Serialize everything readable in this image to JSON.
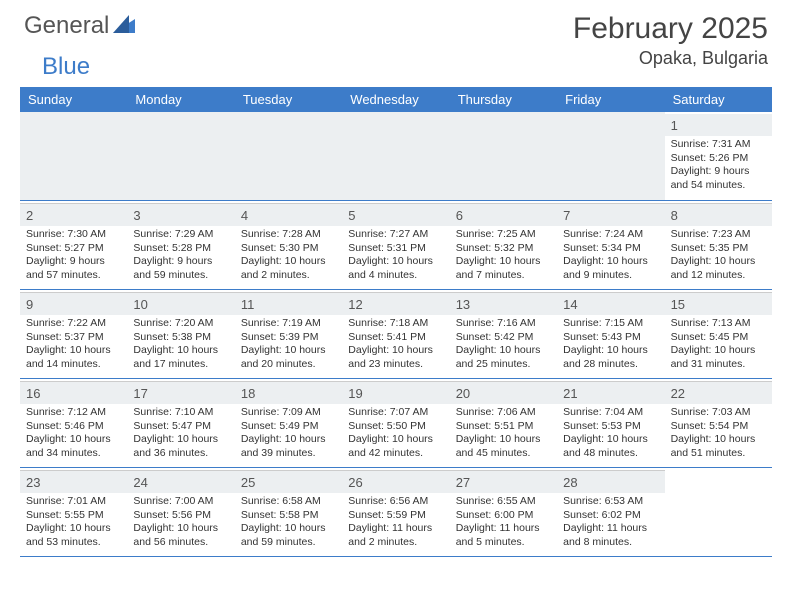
{
  "logo": {
    "word1": "General",
    "word2": "Blue"
  },
  "title": {
    "month": "February 2025",
    "location": "Opaka, Bulgaria"
  },
  "colors": {
    "header_bg": "#3d7cc9",
    "header_fg": "#ffffff",
    "text": "#333333",
    "title_fg": "#444444",
    "daynum_bg": "#eceff1",
    "border": "#3d7cc9"
  },
  "day_names": [
    "Sunday",
    "Monday",
    "Tuesday",
    "Wednesday",
    "Thursday",
    "Friday",
    "Saturday"
  ],
  "weeks": [
    [
      {
        "n": "",
        "sr": "",
        "ss": "",
        "dl": ""
      },
      {
        "n": "",
        "sr": "",
        "ss": "",
        "dl": ""
      },
      {
        "n": "",
        "sr": "",
        "ss": "",
        "dl": ""
      },
      {
        "n": "",
        "sr": "",
        "ss": "",
        "dl": ""
      },
      {
        "n": "",
        "sr": "",
        "ss": "",
        "dl": ""
      },
      {
        "n": "",
        "sr": "",
        "ss": "",
        "dl": ""
      },
      {
        "n": "1",
        "sr": "Sunrise: 7:31 AM",
        "ss": "Sunset: 5:26 PM",
        "dl": "Daylight: 9 hours and 54 minutes."
      }
    ],
    [
      {
        "n": "2",
        "sr": "Sunrise: 7:30 AM",
        "ss": "Sunset: 5:27 PM",
        "dl": "Daylight: 9 hours and 57 minutes."
      },
      {
        "n": "3",
        "sr": "Sunrise: 7:29 AM",
        "ss": "Sunset: 5:28 PM",
        "dl": "Daylight: 9 hours and 59 minutes."
      },
      {
        "n": "4",
        "sr": "Sunrise: 7:28 AM",
        "ss": "Sunset: 5:30 PM",
        "dl": "Daylight: 10 hours and 2 minutes."
      },
      {
        "n": "5",
        "sr": "Sunrise: 7:27 AM",
        "ss": "Sunset: 5:31 PM",
        "dl": "Daylight: 10 hours and 4 minutes."
      },
      {
        "n": "6",
        "sr": "Sunrise: 7:25 AM",
        "ss": "Sunset: 5:32 PM",
        "dl": "Daylight: 10 hours and 7 minutes."
      },
      {
        "n": "7",
        "sr": "Sunrise: 7:24 AM",
        "ss": "Sunset: 5:34 PM",
        "dl": "Daylight: 10 hours and 9 minutes."
      },
      {
        "n": "8",
        "sr": "Sunrise: 7:23 AM",
        "ss": "Sunset: 5:35 PM",
        "dl": "Daylight: 10 hours and 12 minutes."
      }
    ],
    [
      {
        "n": "9",
        "sr": "Sunrise: 7:22 AM",
        "ss": "Sunset: 5:37 PM",
        "dl": "Daylight: 10 hours and 14 minutes."
      },
      {
        "n": "10",
        "sr": "Sunrise: 7:20 AM",
        "ss": "Sunset: 5:38 PM",
        "dl": "Daylight: 10 hours and 17 minutes."
      },
      {
        "n": "11",
        "sr": "Sunrise: 7:19 AM",
        "ss": "Sunset: 5:39 PM",
        "dl": "Daylight: 10 hours and 20 minutes."
      },
      {
        "n": "12",
        "sr": "Sunrise: 7:18 AM",
        "ss": "Sunset: 5:41 PM",
        "dl": "Daylight: 10 hours and 23 minutes."
      },
      {
        "n": "13",
        "sr": "Sunrise: 7:16 AM",
        "ss": "Sunset: 5:42 PM",
        "dl": "Daylight: 10 hours and 25 minutes."
      },
      {
        "n": "14",
        "sr": "Sunrise: 7:15 AM",
        "ss": "Sunset: 5:43 PM",
        "dl": "Daylight: 10 hours and 28 minutes."
      },
      {
        "n": "15",
        "sr": "Sunrise: 7:13 AM",
        "ss": "Sunset: 5:45 PM",
        "dl": "Daylight: 10 hours and 31 minutes."
      }
    ],
    [
      {
        "n": "16",
        "sr": "Sunrise: 7:12 AM",
        "ss": "Sunset: 5:46 PM",
        "dl": "Daylight: 10 hours and 34 minutes."
      },
      {
        "n": "17",
        "sr": "Sunrise: 7:10 AM",
        "ss": "Sunset: 5:47 PM",
        "dl": "Daylight: 10 hours and 36 minutes."
      },
      {
        "n": "18",
        "sr": "Sunrise: 7:09 AM",
        "ss": "Sunset: 5:49 PM",
        "dl": "Daylight: 10 hours and 39 minutes."
      },
      {
        "n": "19",
        "sr": "Sunrise: 7:07 AM",
        "ss": "Sunset: 5:50 PM",
        "dl": "Daylight: 10 hours and 42 minutes."
      },
      {
        "n": "20",
        "sr": "Sunrise: 7:06 AM",
        "ss": "Sunset: 5:51 PM",
        "dl": "Daylight: 10 hours and 45 minutes."
      },
      {
        "n": "21",
        "sr": "Sunrise: 7:04 AM",
        "ss": "Sunset: 5:53 PM",
        "dl": "Daylight: 10 hours and 48 minutes."
      },
      {
        "n": "22",
        "sr": "Sunrise: 7:03 AM",
        "ss": "Sunset: 5:54 PM",
        "dl": "Daylight: 10 hours and 51 minutes."
      }
    ],
    [
      {
        "n": "23",
        "sr": "Sunrise: 7:01 AM",
        "ss": "Sunset: 5:55 PM",
        "dl": "Daylight: 10 hours and 53 minutes."
      },
      {
        "n": "24",
        "sr": "Sunrise: 7:00 AM",
        "ss": "Sunset: 5:56 PM",
        "dl": "Daylight: 10 hours and 56 minutes."
      },
      {
        "n": "25",
        "sr": "Sunrise: 6:58 AM",
        "ss": "Sunset: 5:58 PM",
        "dl": "Daylight: 10 hours and 59 minutes."
      },
      {
        "n": "26",
        "sr": "Sunrise: 6:56 AM",
        "ss": "Sunset: 5:59 PM",
        "dl": "Daylight: 11 hours and 2 minutes."
      },
      {
        "n": "27",
        "sr": "Sunrise: 6:55 AM",
        "ss": "Sunset: 6:00 PM",
        "dl": "Daylight: 11 hours and 5 minutes."
      },
      {
        "n": "28",
        "sr": "Sunrise: 6:53 AM",
        "ss": "Sunset: 6:02 PM",
        "dl": "Daylight: 11 hours and 8 minutes."
      },
      {
        "n": "",
        "sr": "",
        "ss": "",
        "dl": ""
      }
    ]
  ]
}
